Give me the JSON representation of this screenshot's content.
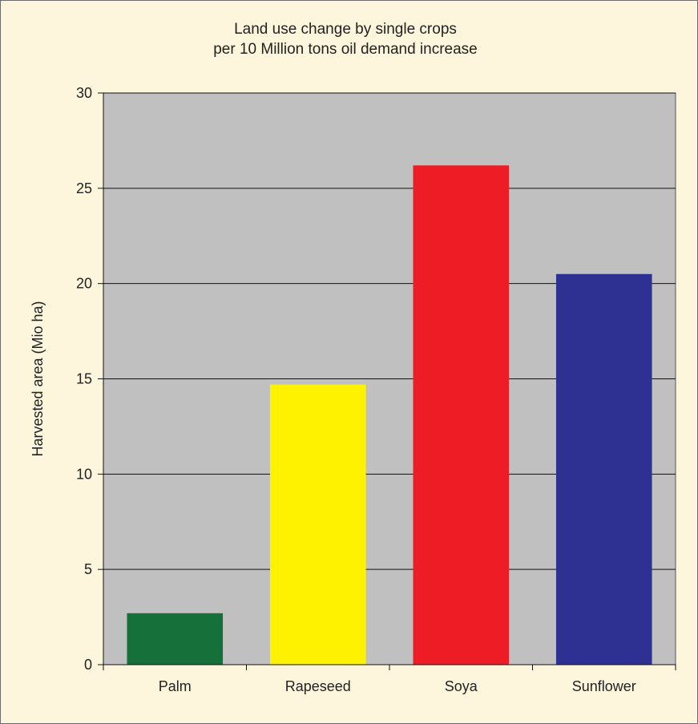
{
  "chart_data": {
    "type": "bar",
    "title": "Land use change by single crops",
    "subtitle": "per 10 Million tons oil demand increase",
    "xlabel": "",
    "ylabel": "Harvested area (Mio ha)",
    "categories": [
      "Palm",
      "Rapeseed",
      "Soya",
      "Sunflower"
    ],
    "values": [
      2.7,
      14.7,
      26.2,
      20.5
    ],
    "colors": [
      "#16703a",
      "#fff200",
      "#ee1c25",
      "#2e3192"
    ],
    "ylim": [
      0,
      30
    ],
    "yticks": [
      0,
      5,
      10,
      15,
      20,
      25,
      30
    ],
    "grid": true,
    "plot_background": "#c0c0c0",
    "page_background": "#fdf5dc"
  }
}
